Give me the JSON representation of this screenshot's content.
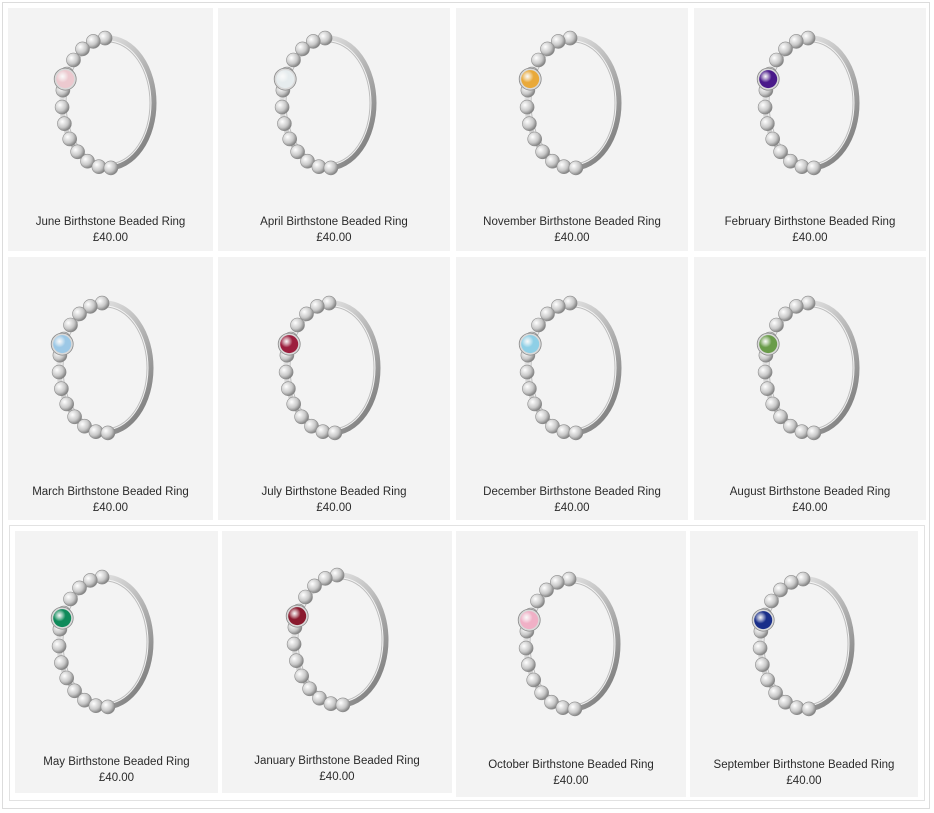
{
  "products": [
    {
      "name": "June Birthstone Beaded Ring",
      "price": "£40.00",
      "stone_color": "#ecc9cf",
      "stone_icon": "gemstone-icon"
    },
    {
      "name": "April Birthstone Beaded Ring",
      "price": "£40.00",
      "stone_color": "#e6ecee",
      "stone_icon": "gemstone-icon"
    },
    {
      "name": "November Birthstone Beaded Ring",
      "price": "£40.00",
      "stone_color": "#e9a93a",
      "stone_icon": "gemstone-icon"
    },
    {
      "name": "February Birthstone Beaded Ring",
      "price": "£40.00",
      "stone_color": "#4a1a8a",
      "stone_icon": "gemstone-icon"
    },
    {
      "name": "March Birthstone Beaded Ring",
      "price": "£40.00",
      "stone_color": "#9cc8e6",
      "stone_icon": "gemstone-icon"
    },
    {
      "name": "July Birthstone Beaded Ring",
      "price": "£40.00",
      "stone_color": "#9c1f3e",
      "stone_icon": "gemstone-icon"
    },
    {
      "name": "December Birthstone Beaded Ring",
      "price": "£40.00",
      "stone_color": "#8ecfe6",
      "stone_icon": "gemstone-icon"
    },
    {
      "name": "August Birthstone Beaded Ring",
      "price": "£40.00",
      "stone_color": "#6a9c4a",
      "stone_icon": "gemstone-icon"
    },
    {
      "name": "May Birthstone Beaded Ring",
      "price": "£40.00",
      "stone_color": "#0f8a5a",
      "stone_icon": "gemstone-icon"
    },
    {
      "name": "January Birthstone Beaded Ring",
      "price": "£40.00",
      "stone_color": "#8a1a2e",
      "stone_icon": "gemstone-icon"
    },
    {
      "name": "October Birthstone Beaded Ring",
      "price": "£40.00",
      "stone_color": "#f0b0c6",
      "stone_icon": "gemstone-icon"
    },
    {
      "name": "September Birthstone Beaded Ring",
      "price": "£40.00",
      "stone_color": "#1a2f8a",
      "stone_icon": "gemstone-icon"
    }
  ]
}
